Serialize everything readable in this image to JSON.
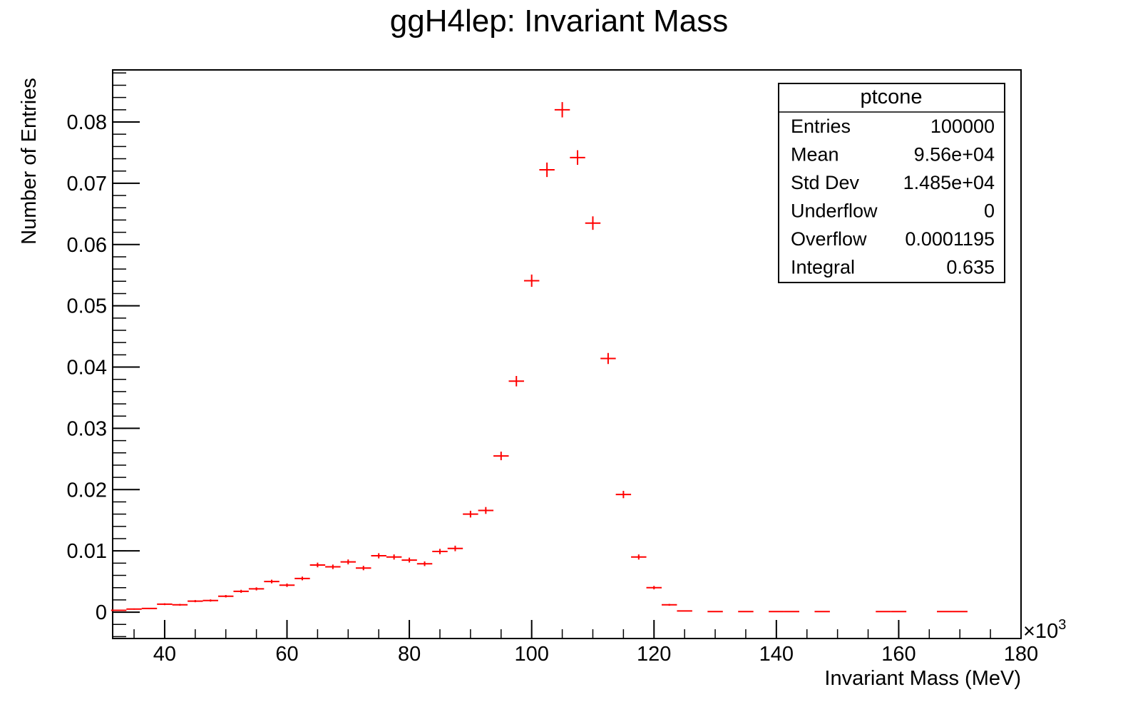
{
  "chart_data": {
    "type": "scatter",
    "title": "ggH4lep: Invariant Mass",
    "xlabel": "Invariant Mass (MeV)",
    "ylabel": "Number of Entries",
    "x_multiplier_label": "×10",
    "x_multiplier_exponent": "3",
    "xlim": [
      31.5,
      180
    ],
    "ylim": [
      -0.0043,
      0.0885
    ],
    "x_ticks": [
      40,
      60,
      80,
      100,
      120,
      140,
      160,
      180
    ],
    "x_tick_labels": [
      "40",
      "60",
      "80",
      "100",
      "120",
      "140",
      "160",
      "180"
    ],
    "y_ticks": [
      0,
      0.01,
      0.02,
      0.03,
      0.04,
      0.05,
      0.06,
      0.07,
      0.08
    ],
    "y_tick_labels": [
      "0",
      "0.01",
      "0.02",
      "0.03",
      "0.04",
      "0.05",
      "0.06",
      "0.07",
      "0.08"
    ],
    "grid": false,
    "legend_placement": "top-right",
    "bin_width": 2.5,
    "marker_color": "#ff0000",
    "series": [
      {
        "x": [
          32.5,
          35,
          37.5,
          40,
          42.5,
          45,
          47.5,
          50,
          52.5,
          55,
          57.5,
          60,
          62.5,
          65,
          67.5,
          70,
          72.5,
          75,
          77.5,
          80,
          82.5,
          85,
          87.5,
          90,
          92.5,
          95,
          97.5,
          100,
          102.5,
          105,
          107.5,
          110,
          112.5,
          115,
          117.5,
          120,
          122.5,
          125,
          130,
          135,
          140,
          142.5,
          147.5,
          157.5,
          160,
          167.5,
          170
        ],
        "y": [
          0.0003,
          0.0005,
          0.0006,
          0.0013,
          0.0012,
          0.0018,
          0.0019,
          0.0026,
          0.0034,
          0.0038,
          0.005,
          0.0044,
          0.0055,
          0.0077,
          0.0074,
          0.0082,
          0.0072,
          0.0092,
          0.009,
          0.0085,
          0.0079,
          0.0099,
          0.0104,
          0.016,
          0.0166,
          0.0255,
          0.0377,
          0.0541,
          0.0722,
          0.082,
          0.0742,
          0.0635,
          0.0414,
          0.0192,
          0.009,
          0.004,
          0.0012,
          0.0002,
          0.0001,
          0.0001,
          0.0001,
          0.0001,
          0.0001,
          0.0001,
          0.0001,
          0.0001,
          0.0001
        ],
        "yerr": [
          8e-05,
          0.0001,
          0.0001,
          0.00015,
          0.00015,
          0.00018,
          0.00018,
          0.0002,
          0.00025,
          0.00025,
          0.0003,
          0.00028,
          0.0003,
          0.00038,
          0.00037,
          0.0004,
          0.00036,
          0.00042,
          0.00042,
          0.0004,
          0.00038,
          0.00043,
          0.00045,
          0.00055,
          0.00056,
          0.0007,
          0.00085,
          0.001,
          0.00118,
          0.00125,
          0.00119,
          0.0011,
          0.0009,
          0.0006,
          0.00042,
          0.00028,
          0.00015,
          5e-05,
          4e-05,
          4e-05,
          4e-05,
          4e-05,
          4e-05,
          4e-05,
          4e-05,
          4e-05,
          4e-05
        ]
      }
    ]
  },
  "stats_box": {
    "title": "ptcone",
    "rows": [
      {
        "label": "Entries",
        "value": "100000"
      },
      {
        "label": "Mean",
        "value": "9.56e+04"
      },
      {
        "label": "Std Dev",
        "value": "1.485e+04"
      },
      {
        "label": "Underflow",
        "value": "0"
      },
      {
        "label": "Overflow",
        "value": "0.0001195"
      },
      {
        "label": "Integral",
        "value": "0.635"
      }
    ]
  }
}
